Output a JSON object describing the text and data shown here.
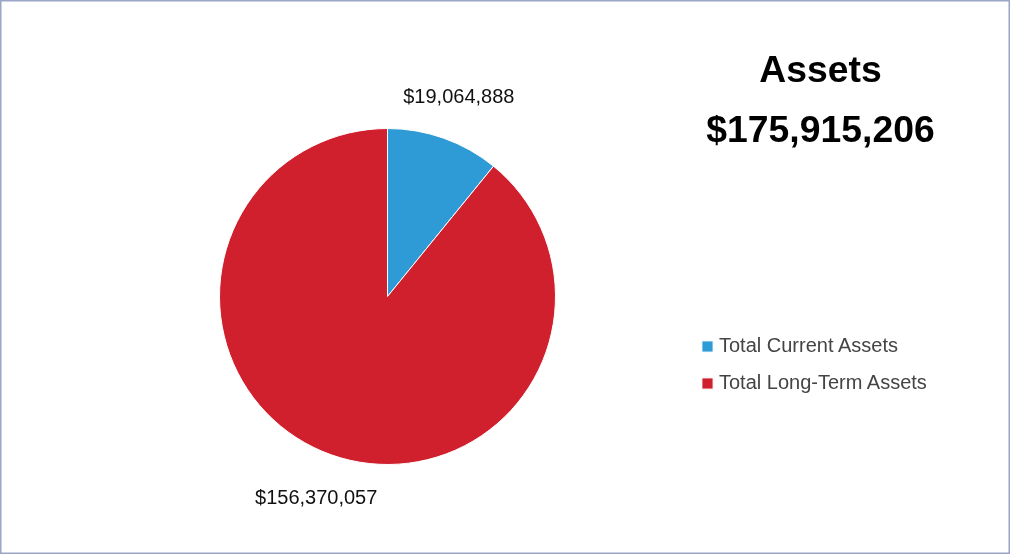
{
  "chart_data": {
    "type": "pie",
    "title": "Assets",
    "subtitle": "$175,915,206",
    "categories": [
      "Total Current Assets",
      "Total Long-Term Assets"
    ],
    "values": [
      19064888,
      156370057
    ],
    "colors": [
      "#2e9bd6",
      "#d0202e"
    ],
    "value_labels": [
      "$19,064,888",
      "$156,370,057"
    ],
    "legend": "right"
  }
}
